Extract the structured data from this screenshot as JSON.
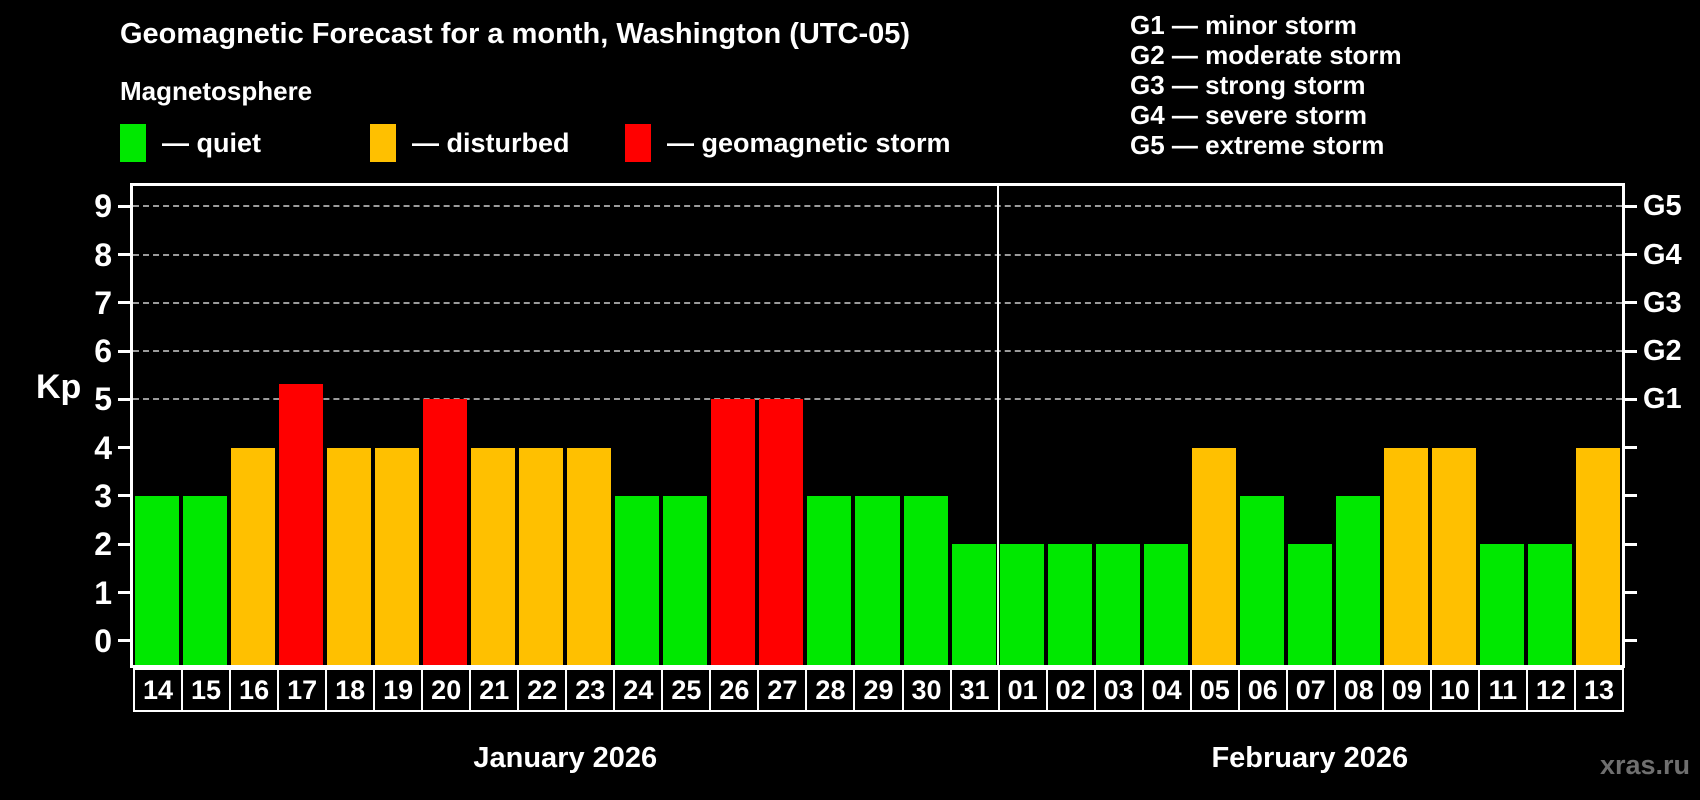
{
  "header": {
    "title": "Geomagnetic Forecast for a month, Washington (UTC-05)",
    "subtitle": "Magnetosphere"
  },
  "separator": "—",
  "magnetosphere_legend": [
    {
      "status": "quiet",
      "label": "quiet"
    },
    {
      "status": "disturbed",
      "label": "disturbed"
    },
    {
      "status": "storm",
      "label": "geomagnetic storm"
    }
  ],
  "storm_scale_legend": [
    {
      "code": "G1",
      "label": "minor storm"
    },
    {
      "code": "G2",
      "label": "moderate storm"
    },
    {
      "code": "G3",
      "label": "strong storm"
    },
    {
      "code": "G4",
      "label": "severe storm"
    },
    {
      "code": "G5",
      "label": "extreme storm"
    }
  ],
  "status_colors": {
    "quiet": "#00e800",
    "disturbed": "#ffc000",
    "storm": "#ff0000"
  },
  "watermark": "xras.ru",
  "chart_data": {
    "type": "bar",
    "ylabel": "Kp",
    "ylim": [
      -0.5,
      9.42
    ],
    "yticks": [
      "0",
      "1",
      "2",
      "3",
      "4",
      "5",
      "6",
      "7",
      "8",
      "9"
    ],
    "gridlines_at_kp": [
      5,
      6,
      7,
      8,
      9
    ],
    "right_axis": [
      {
        "kp": 5,
        "label": "G1"
      },
      {
        "kp": 6,
        "label": "G2"
      },
      {
        "kp": 7,
        "label": "G3"
      },
      {
        "kp": 8,
        "label": "G4"
      },
      {
        "kp": 9,
        "label": "G5"
      }
    ],
    "months": [
      {
        "label": "January 2026",
        "days": [
          {
            "day": "14",
            "kp": 3,
            "status": "quiet"
          },
          {
            "day": "15",
            "kp": 3,
            "status": "quiet"
          },
          {
            "day": "16",
            "kp": 4,
            "status": "disturbed"
          },
          {
            "day": "17",
            "kp": 5.33,
            "status": "storm"
          },
          {
            "day": "18",
            "kp": 4,
            "status": "disturbed"
          },
          {
            "day": "19",
            "kp": 4,
            "status": "disturbed"
          },
          {
            "day": "20",
            "kp": 5,
            "status": "storm"
          },
          {
            "day": "21",
            "kp": 4,
            "status": "disturbed"
          },
          {
            "day": "22",
            "kp": 4,
            "status": "disturbed"
          },
          {
            "day": "23",
            "kp": 4,
            "status": "disturbed"
          },
          {
            "day": "24",
            "kp": 3,
            "status": "quiet"
          },
          {
            "day": "25",
            "kp": 3,
            "status": "quiet"
          },
          {
            "day": "26",
            "kp": 5,
            "status": "storm"
          },
          {
            "day": "27",
            "kp": 5,
            "status": "storm"
          },
          {
            "day": "28",
            "kp": 3,
            "status": "quiet"
          },
          {
            "day": "29",
            "kp": 3,
            "status": "quiet"
          },
          {
            "day": "30",
            "kp": 3,
            "status": "quiet"
          },
          {
            "day": "31",
            "kp": 2,
            "status": "quiet"
          }
        ]
      },
      {
        "label": "February 2026",
        "days": [
          {
            "day": "01",
            "kp": 2,
            "status": "quiet"
          },
          {
            "day": "02",
            "kp": 2,
            "status": "quiet"
          },
          {
            "day": "03",
            "kp": 2,
            "status": "quiet"
          },
          {
            "day": "04",
            "kp": 2,
            "status": "quiet"
          },
          {
            "day": "05",
            "kp": 4,
            "status": "disturbed"
          },
          {
            "day": "06",
            "kp": 3,
            "status": "quiet"
          },
          {
            "day": "07",
            "kp": 2,
            "status": "quiet"
          },
          {
            "day": "08",
            "kp": 3,
            "status": "quiet"
          },
          {
            "day": "09",
            "kp": 4,
            "status": "disturbed"
          },
          {
            "day": "10",
            "kp": 4,
            "status": "disturbed"
          },
          {
            "day": "11",
            "kp": 2,
            "status": "quiet"
          },
          {
            "day": "12",
            "kp": 2,
            "status": "quiet"
          },
          {
            "day": "13",
            "kp": 4,
            "status": "disturbed"
          }
        ]
      }
    ]
  }
}
